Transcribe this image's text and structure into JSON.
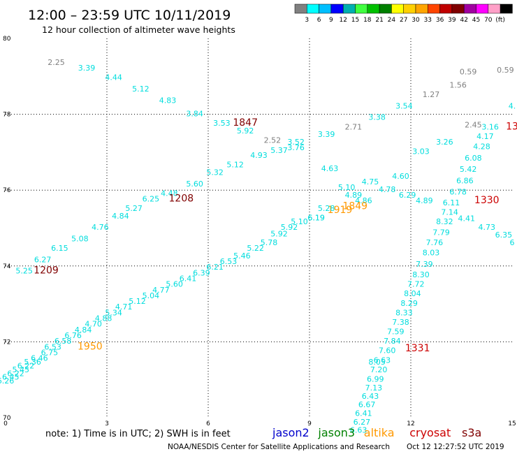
{
  "title": "12:00 – 23:59 UTC 10/11/2019",
  "subtitle": "12 hour collection of altimeter wave heights",
  "footer": {
    "note": "note: 1) Time is in UTC; 2) SWH is in feet",
    "credit": "NOAA/NESDIS Center for Satellite Applications and Research",
    "timestamp": "Oct 12 12:27:52 UTC 2019"
  },
  "legend_scale": {
    "colors": [
      "#808080",
      "#00ffff",
      "#00bfff",
      "#0000ff",
      "#00b0b0",
      "#40ff40",
      "#00c000",
      "#008000",
      "#ffff00",
      "#ffd000",
      "#ffa500",
      "#ff4500",
      "#c00000",
      "#800000",
      "#a000a0",
      "#ff00ff",
      "#ffa0c8",
      "#000000"
    ],
    "labels": [
      "3",
      "6",
      "9",
      "12",
      "15",
      "18",
      "21",
      "24",
      "27",
      "30",
      "33",
      "36",
      "39",
      "42",
      "45",
      "70",
      "(ft)"
    ]
  },
  "satellites": [
    {
      "name": "jason2",
      "color": "#0000cc"
    },
    {
      "name": "jason3",
      "color": "#008000"
    },
    {
      "name": "altika",
      "color": "#ff9900"
    },
    {
      "name": "cryosat",
      "color": "#cc0000"
    },
    {
      "name": "s3a",
      "color": "#800000"
    }
  ],
  "chart_data": {
    "type": "scatter",
    "xlabel": "",
    "ylabel": "",
    "xlim": [
      0,
      15
    ],
    "ylim": [
      70,
      80
    ],
    "x_ticks": [
      "0",
      "3",
      "6",
      "9",
      "12",
      "15"
    ],
    "y_ticks": [
      "70",
      "72",
      "74",
      "76",
      "78",
      "80"
    ],
    "grid": "dotted",
    "points": [
      {
        "x": 1.5,
        "y": 79.3,
        "label": "2.25",
        "color": "#808080"
      },
      {
        "x": 2.4,
        "y": 79.15,
        "label": "3.39",
        "color": "#00dddd"
      },
      {
        "x": 3.2,
        "y": 78.9,
        "label": "4.44",
        "color": "#00dddd"
      },
      {
        "x": 4.0,
        "y": 78.6,
        "label": "5.12",
        "color": "#00dddd"
      },
      {
        "x": 4.8,
        "y": 78.3,
        "label": "4.83",
        "color": "#00dddd"
      },
      {
        "x": 5.6,
        "y": 77.95,
        "label": "3.84",
        "color": "#00dddd"
      },
      {
        "x": 6.4,
        "y": 77.7,
        "label": "3.53",
        "color": "#00dddd"
      },
      {
        "x": 7.1,
        "y": 77.7,
        "label": "1847",
        "color": "#800000",
        "size": 14
      },
      {
        "x": 7.1,
        "y": 77.5,
        "label": "5.92",
        "color": "#00dddd"
      },
      {
        "x": 7.9,
        "y": 77.25,
        "label": "2.52",
        "color": "#808080"
      },
      {
        "x": 8.6,
        "y": 77.2,
        "label": "3.52",
        "color": "#00dddd"
      },
      {
        "x": 8.1,
        "y": 76.98,
        "label": "5.37",
        "color": "#00dddd"
      },
      {
        "x": 8.6,
        "y": 77.05,
        "label": "3.76",
        "color": "#00dddd"
      },
      {
        "x": 9.5,
        "y": 77.4,
        "label": "3.39",
        "color": "#00dddd"
      },
      {
        "x": 10.3,
        "y": 77.6,
        "label": "2.71",
        "color": "#808080"
      },
      {
        "x": 11.0,
        "y": 77.85,
        "label": "3.38",
        "color": "#00dddd"
      },
      {
        "x": 11.8,
        "y": 78.15,
        "label": "3.54",
        "color": "#00dddd"
      },
      {
        "x": 12.6,
        "y": 78.45,
        "label": "1.27",
        "color": "#808080"
      },
      {
        "x": 13.4,
        "y": 78.7,
        "label": "1.56",
        "color": "#808080"
      },
      {
        "x": 13.7,
        "y": 79.05,
        "label": "0.59",
        "color": "#808080"
      },
      {
        "x": 14.8,
        "y": 79.1,
        "label": "0.59",
        "color": "#808080"
      },
      {
        "x": 15.0,
        "y": 78.15,
        "label": "4.",
        "color": "#00dddd"
      },
      {
        "x": 15.0,
        "y": 77.6,
        "label": "13",
        "color": "#cc0000",
        "size": 14
      },
      {
        "x": 13.85,
        "y": 77.65,
        "label": "2.45",
        "color": "#808080"
      },
      {
        "x": 14.35,
        "y": 77.6,
        "label": "3.16",
        "color": "#00dddd"
      },
      {
        "x": 14.2,
        "y": 77.35,
        "label": "4.17",
        "color": "#00dddd"
      },
      {
        "x": 14.1,
        "y": 77.08,
        "label": "4.28",
        "color": "#00dddd"
      },
      {
        "x": 13.85,
        "y": 76.78,
        "label": "6.08",
        "color": "#00dddd"
      },
      {
        "x": 13.7,
        "y": 76.48,
        "label": "5.42",
        "color": "#00dddd"
      },
      {
        "x": 13.6,
        "y": 76.18,
        "label": "6.86",
        "color": "#00dddd"
      },
      {
        "x": 13.4,
        "y": 75.88,
        "label": "6.78",
        "color": "#00dddd"
      },
      {
        "x": 14.25,
        "y": 75.65,
        "label": "1330",
        "color": "#cc0000",
        "size": 14
      },
      {
        "x": 13.2,
        "y": 75.6,
        "label": "6.11",
        "color": "#00dddd"
      },
      {
        "x": 13.15,
        "y": 75.35,
        "label": "7.14",
        "color": "#00dddd"
      },
      {
        "x": 13.65,
        "y": 75.18,
        "label": "4.41",
        "color": "#00dddd"
      },
      {
        "x": 14.25,
        "y": 74.95,
        "label": "4.73",
        "color": "#00dddd"
      },
      {
        "x": 14.75,
        "y": 74.75,
        "label": "6.35",
        "color": "#00dddd"
      },
      {
        "x": 15.0,
        "y": 74.55,
        "label": "6",
        "color": "#00dddd"
      },
      {
        "x": 13.0,
        "y": 75.1,
        "label": "8.32",
        "color": "#00dddd"
      },
      {
        "x": 12.9,
        "y": 74.82,
        "label": "7.79",
        "color": "#00dddd"
      },
      {
        "x": 12.7,
        "y": 74.55,
        "label": "7.76",
        "color": "#00dddd"
      },
      {
        "x": 12.6,
        "y": 74.28,
        "label": "8.03",
        "color": "#00dddd"
      },
      {
        "x": 12.4,
        "y": 73.98,
        "label": "7.39",
        "color": "#00dddd"
      },
      {
        "x": 12.3,
        "y": 73.7,
        "label": "8.30",
        "color": "#00dddd"
      },
      {
        "x": 12.15,
        "y": 73.45,
        "label": "7.72",
        "color": "#00dddd"
      },
      {
        "x": 12.05,
        "y": 73.2,
        "label": "8.04",
        "color": "#00dddd"
      },
      {
        "x": 11.95,
        "y": 72.95,
        "label": "8.29",
        "color": "#00dddd"
      },
      {
        "x": 11.8,
        "y": 72.7,
        "label": "8.33",
        "color": "#00dddd"
      },
      {
        "x": 11.7,
        "y": 72.45,
        "label": "7.38",
        "color": "#00dddd"
      },
      {
        "x": 11.55,
        "y": 72.2,
        "label": "7.59",
        "color": "#00dddd"
      },
      {
        "x": 11.45,
        "y": 71.95,
        "label": "7.84",
        "color": "#00dddd"
      },
      {
        "x": 11.3,
        "y": 71.7,
        "label": "7.60",
        "color": "#00dddd"
      },
      {
        "x": 12.2,
        "y": 71.75,
        "label": "1331",
        "color": "#cc0000",
        "size": 14
      },
      {
        "x": 11.15,
        "y": 71.45,
        "label": "6.63",
        "color": "#00dddd"
      },
      {
        "x": 11.05,
        "y": 71.2,
        "label": "7.20",
        "color": "#00dddd"
      },
      {
        "x": 10.95,
        "y": 70.95,
        "label": "6.99",
        "color": "#00dddd"
      },
      {
        "x": 10.9,
        "y": 70.72,
        "label": "7.13",
        "color": "#00dddd"
      },
      {
        "x": 10.8,
        "y": 70.5,
        "label": "6.43",
        "color": "#00dddd"
      },
      {
        "x": 10.7,
        "y": 70.28,
        "label": "6.67",
        "color": "#00dddd"
      },
      {
        "x": 10.6,
        "y": 70.05,
        "label": "6.41",
        "color": "#00dddd"
      },
      {
        "x": 10.55,
        "y": 69.82,
        "label": "6.27",
        "color": "#00dddd"
      },
      {
        "x": 10.45,
        "y": 69.6,
        "label": "6.63",
        "color": "#00dddd"
      },
      {
        "x": 11.0,
        "y": 71.4,
        "label": "8.05",
        "color": "#00dddd"
      },
      {
        "x": 11.7,
        "y": 76.3,
        "label": "4.60",
        "color": "#00dddd"
      },
      {
        "x": 12.3,
        "y": 76.95,
        "label": "3.03",
        "color": "#00dddd"
      },
      {
        "x": 13.0,
        "y": 77.2,
        "label": "3.26",
        "color": "#00dddd"
      },
      {
        "x": 11.3,
        "y": 75.95,
        "label": "4.78",
        "color": "#00dddd"
      },
      {
        "x": 11.9,
        "y": 75.8,
        "label": "6.29",
        "color": "#00dddd"
      },
      {
        "x": 12.4,
        "y": 75.65,
        "label": "4.89",
        "color": "#00dddd"
      },
      {
        "x": 10.8,
        "y": 76.15,
        "label": "4.75",
        "color": "#00dddd"
      },
      {
        "x": 9.6,
        "y": 76.5,
        "label": "4.63",
        "color": "#00dddd"
      },
      {
        "x": 10.1,
        "y": 76.0,
        "label": "5.10",
        "color": "#00dddd"
      },
      {
        "x": 10.3,
        "y": 75.8,
        "label": "4.89",
        "color": "#00dddd"
      },
      {
        "x": 10.6,
        "y": 75.65,
        "label": "4.86",
        "color": "#00dddd"
      },
      {
        "x": 10.35,
        "y": 75.5,
        "label": "1849",
        "color": "#ff9900",
        "size": 14
      },
      {
        "x": 9.9,
        "y": 75.4,
        "label": "1919",
        "color": "#ff9900",
        "size": 14
      },
      {
        "x": 9.5,
        "y": 75.45,
        "label": "5.28",
        "color": "#00dddd"
      },
      {
        "x": 9.2,
        "y": 75.2,
        "label": "6.19",
        "color": "#00dddd"
      },
      {
        "x": 8.7,
        "y": 75.1,
        "label": "5.10",
        "color": "#00dddd"
      },
      {
        "x": 8.4,
        "y": 74.95,
        "label": "5.92",
        "color": "#00dddd"
      },
      {
        "x": 8.1,
        "y": 74.78,
        "label": "5.92",
        "color": "#00dddd"
      },
      {
        "x": 7.8,
        "y": 74.55,
        "label": "5.78",
        "color": "#00dddd"
      },
      {
        "x": 7.4,
        "y": 74.4,
        "label": "5.22",
        "color": "#00dddd"
      },
      {
        "x": 7.0,
        "y": 74.2,
        "label": "5.46",
        "color": "#00dddd"
      },
      {
        "x": 6.6,
        "y": 74.05,
        "label": "6.53",
        "color": "#00dddd"
      },
      {
        "x": 6.2,
        "y": 73.9,
        "label": "6.21",
        "color": "#00dddd"
      },
      {
        "x": 5.8,
        "y": 73.75,
        "label": "6.39",
        "color": "#00dddd"
      },
      {
        "x": 5.4,
        "y": 73.6,
        "label": "6.41",
        "color": "#00dddd"
      },
      {
        "x": 5.0,
        "y": 73.45,
        "label": "5.60",
        "color": "#00dddd"
      },
      {
        "x": 4.6,
        "y": 73.3,
        "label": "4.77",
        "color": "#00dddd"
      },
      {
        "x": 4.3,
        "y": 73.15,
        "label": "5.04",
        "color": "#00dddd"
      },
      {
        "x": 3.9,
        "y": 73.0,
        "label": "5.12",
        "color": "#00dddd"
      },
      {
        "x": 3.5,
        "y": 72.85,
        "label": "4.71",
        "color": "#00dddd"
      },
      {
        "x": 3.2,
        "y": 72.7,
        "label": "5.34",
        "color": "#00dddd"
      },
      {
        "x": 2.9,
        "y": 72.55,
        "label": "4.88",
        "color": "#00dddd"
      },
      {
        "x": 2.6,
        "y": 72.4,
        "label": "4.70",
        "color": "#00dddd"
      },
      {
        "x": 2.3,
        "y": 72.25,
        "label": "4.84",
        "color": "#00dddd"
      },
      {
        "x": 2.0,
        "y": 72.1,
        "label": "6.76",
        "color": "#00dddd"
      },
      {
        "x": 1.7,
        "y": 71.95,
        "label": "6.58",
        "color": "#00dddd"
      },
      {
        "x": 1.4,
        "y": 71.8,
        "label": "6.53",
        "color": "#00dddd"
      },
      {
        "x": 2.5,
        "y": 71.8,
        "label": "1950",
        "color": "#ff9900",
        "size": 14
      },
      {
        "x": 1.3,
        "y": 71.65,
        "label": "6.75",
        "color": "#00dddd"
      },
      {
        "x": 1.0,
        "y": 71.5,
        "label": "6.46",
        "color": "#00dddd"
      },
      {
        "x": 0.8,
        "y": 71.4,
        "label": "5.36",
        "color": "#00dddd"
      },
      {
        "x": 0.6,
        "y": 71.3,
        "label": "6.22",
        "color": "#00dddd"
      },
      {
        "x": 0.45,
        "y": 71.2,
        "label": "5.45",
        "color": "#00dddd"
      },
      {
        "x": 0.3,
        "y": 71.1,
        "label": "6.22",
        "color": "#00dddd"
      },
      {
        "x": 0.15,
        "y": 71.0,
        "label": "6.45",
        "color": "#00dddd"
      },
      {
        "x": 0.0,
        "y": 70.9,
        "label": "6.26",
        "color": "#00dddd"
      },
      {
        "x": 0.55,
        "y": 73.8,
        "label": "5.25",
        "color": "#00dddd"
      },
      {
        "x": 1.2,
        "y": 73.8,
        "label": "1209",
        "color": "#800000",
        "size": 14
      },
      {
        "x": 1.1,
        "y": 74.1,
        "label": "6.27",
        "color": "#00dddd"
      },
      {
        "x": 1.6,
        "y": 74.4,
        "label": "6.15",
        "color": "#00dddd"
      },
      {
        "x": 2.2,
        "y": 74.65,
        "label": "5.08",
        "color": "#00dddd"
      },
      {
        "x": 2.8,
        "y": 74.95,
        "label": "4.76",
        "color": "#00dddd"
      },
      {
        "x": 3.4,
        "y": 75.25,
        "label": "4.84",
        "color": "#00dddd"
      },
      {
        "x": 3.8,
        "y": 75.45,
        "label": "5.27",
        "color": "#00dddd"
      },
      {
        "x": 4.3,
        "y": 75.7,
        "label": "6.25",
        "color": "#00dddd"
      },
      {
        "x": 4.85,
        "y": 75.85,
        "label": "4.48",
        "color": "#00dddd"
      },
      {
        "x": 5.2,
        "y": 75.7,
        "label": "1208",
        "color": "#800000",
        "size": 14
      },
      {
        "x": 5.6,
        "y": 76.1,
        "label": "5.60",
        "color": "#00dddd"
      },
      {
        "x": 6.2,
        "y": 76.4,
        "label": "5.32",
        "color": "#00dddd"
      },
      {
        "x": 6.8,
        "y": 76.6,
        "label": "5.12",
        "color": "#00dddd"
      },
      {
        "x": 7.5,
        "y": 76.85,
        "label": "4.93",
        "color": "#00dddd"
      },
      {
        "x": 9.2,
        "y": 75.2,
        "label": "6.19",
        "color": "#00dddd"
      }
    ]
  }
}
